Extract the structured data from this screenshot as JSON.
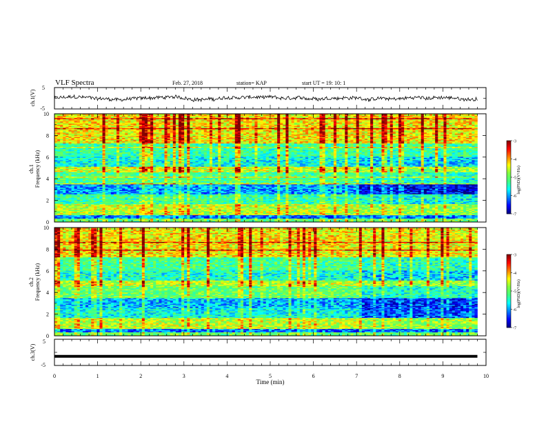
{
  "header": {
    "title": "VLF Spectra",
    "date": "Feb. 27, 2018",
    "station": "station= KAP",
    "start_ut": "start  UT =   19: 10: 1"
  },
  "colors": {
    "trace": "#000000",
    "frame": "#000000",
    "colormap": [
      "#00007f",
      "#0000ff",
      "#0080ff",
      "#00ffff",
      "#40ff80",
      "#80ff40",
      "#ffff00",
      "#ff8000",
      "#ff0000",
      "#7f0000"
    ]
  },
  "chart_data": [
    {
      "type": "line",
      "panel": "ch1-waveform",
      "ylabel": "ch.1(V)",
      "ylim": [
        -5,
        5
      ],
      "yticks": [
        "5",
        "-5"
      ],
      "xlim": [
        0,
        9.8
      ],
      "note": "noisy waveform centred near 0 V, amplitude about ±1.5 V"
    },
    {
      "type": "heatmap",
      "panel": "ch1-spectrogram",
      "ylabel": "Frequency (kHz)",
      "channel_label": "ch.1",
      "ylim": [
        0,
        10
      ],
      "yticks": [
        "0",
        "2",
        "4",
        "6",
        "8",
        "10"
      ],
      "xlim": [
        0,
        9.8
      ],
      "bands": [
        {
          "f0": 0.0,
          "f1": 0.3,
          "level": -5.0,
          "after_7min": -5.0
        },
        {
          "f0": 0.3,
          "f1": 0.6,
          "level": -6.2,
          "after_7min": -6.2
        },
        {
          "f0": 0.6,
          "f1": 1.6,
          "level": -4.6,
          "after_7min": -4.8
        },
        {
          "f0": 1.6,
          "f1": 2.6,
          "level": -5.3,
          "after_7min": -5.6
        },
        {
          "f0": 2.6,
          "f1": 3.5,
          "level": -6.0,
          "after_7min": -6.6
        },
        {
          "f0": 3.5,
          "f1": 4.6,
          "level": -5.2,
          "after_7min": -5.5
        },
        {
          "f0": 4.6,
          "f1": 5.1,
          "level": -4.5,
          "after_7min": -4.8
        },
        {
          "f0": 5.1,
          "f1": 6.0,
          "level": -5.6,
          "after_7min": -5.8
        },
        {
          "f0": 6.0,
          "f1": 7.2,
          "level": -5.3,
          "after_7min": -5.3
        },
        {
          "f0": 7.2,
          "f1": 10.0,
          "level": -4.3,
          "after_7min": -4.3
        }
      ],
      "colorbar": {
        "label": "log(PSD)(V²/Hz)",
        "ticks": [
          "-3",
          "-4",
          "-5",
          "-6",
          "-7"
        ],
        "range": [
          -7,
          -3
        ]
      }
    },
    {
      "type": "heatmap",
      "panel": "ch2-spectrogram",
      "ylabel": "Frequency (kHz)",
      "channel_label": "ch.2",
      "ylim": [
        0,
        10
      ],
      "yticks": [
        "0",
        "2",
        "4",
        "6",
        "8",
        "10"
      ],
      "xlim": [
        0,
        9.8
      ],
      "bands": [
        {
          "f0": 0.0,
          "f1": 0.3,
          "level": -5.0,
          "after_7min": -5.0
        },
        {
          "f0": 0.3,
          "f1": 0.6,
          "level": -6.2,
          "after_7min": -6.2
        },
        {
          "f0": 0.6,
          "f1": 1.6,
          "level": -4.6,
          "after_7min": -4.8
        },
        {
          "f0": 1.6,
          "f1": 2.6,
          "level": -5.6,
          "after_7min": -6.3
        },
        {
          "f0": 2.6,
          "f1": 3.5,
          "level": -5.9,
          "after_7min": -6.4
        },
        {
          "f0": 3.5,
          "f1": 4.6,
          "level": -5.0,
          "after_7min": -5.5
        },
        {
          "f0": 4.6,
          "f1": 5.1,
          "level": -4.6,
          "after_7min": -4.8
        },
        {
          "f0": 5.1,
          "f1": 6.0,
          "level": -5.5,
          "after_7min": -5.8
        },
        {
          "f0": 6.0,
          "f1": 7.2,
          "level": -5.2,
          "after_7min": -5.4
        },
        {
          "f0": 7.2,
          "f1": 10.0,
          "level": -4.3,
          "after_7min": -4.4
        }
      ],
      "colorbar": {
        "label": "log(PSD)(V²/Hz)",
        "ticks": [
          "-3",
          "-4",
          "-5",
          "-6",
          "-7"
        ],
        "range": [
          -7,
          -3
        ]
      }
    },
    {
      "type": "line",
      "panel": "ch3-waveform",
      "ylabel": "ch.3(V)",
      "ylim": [
        -5,
        5
      ],
      "yticks": [
        "5",
        "-5"
      ],
      "xlim": [
        0,
        9.8
      ],
      "constant_value": -1.5
    }
  ],
  "xaxis": {
    "label": "Time (min)",
    "ticks": [
      "0",
      "1",
      "2",
      "3",
      "4",
      "5",
      "6",
      "7",
      "8",
      "9",
      "10"
    ],
    "range": [
      0,
      10
    ]
  }
}
